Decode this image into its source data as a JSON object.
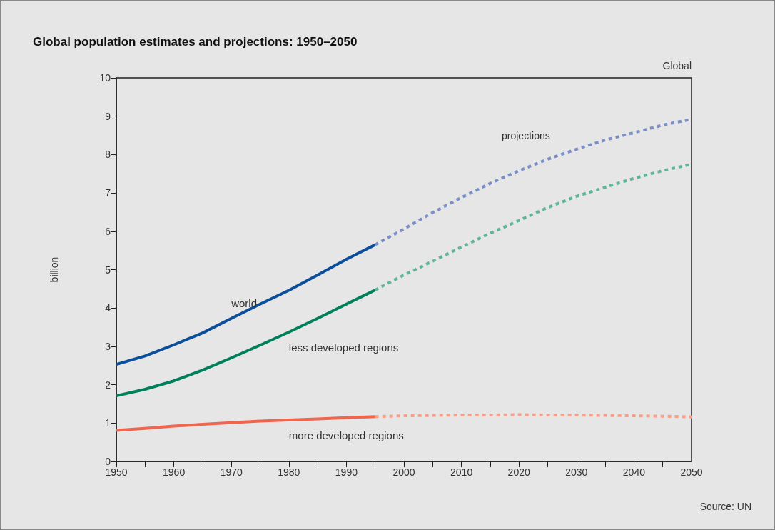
{
  "chart_data": {
    "type": "line",
    "title": "Global population estimates and projections: 1950–2050",
    "ylabel": "billion",
    "annotations": [
      "Global",
      "Source: UN",
      "projections"
    ],
    "xlim": [
      1950,
      2050
    ],
    "ylim": [
      0,
      10
    ],
    "xticks": [
      1950,
      {
        "value": 1955,
        "label": null
      },
      1960,
      {
        "value": 1965,
        "label": null
      },
      1970,
      {
        "value": 1975,
        "label": null
      },
      1980,
      {
        "value": 1985,
        "label": null
      },
      1990,
      {
        "value": 1995,
        "label": null
      },
      2000,
      {
        "value": 2005,
        "label": null
      },
      2010,
      {
        "value": 2015,
        "label": null
      },
      2020,
      {
        "value": 2025,
        "label": null
      },
      2030,
      {
        "value": 2035,
        "label": null
      },
      2040,
      {
        "value": 2045,
        "label": null
      },
      2050
    ],
    "yticks": [
      0,
      1,
      2,
      3,
      4,
      5,
      6,
      7,
      8,
      9,
      10
    ],
    "grid": false,
    "marker": "none",
    "series": [
      {
        "name": "world",
        "color": "#0b4f9c",
        "line_style": "solid",
        "x": [
          1950,
          1955,
          1960,
          1965,
          1970,
          1975,
          1980,
          1985,
          1990,
          1995
        ],
        "values": [
          2.53,
          2.75,
          3.04,
          3.35,
          3.73,
          4.1,
          4.46,
          4.86,
          5.27,
          5.65
        ]
      },
      {
        "color": "#7a8fc8",
        "line_style": "dotted",
        "x": [
          1995,
          2000,
          2005,
          2010,
          2015,
          2020,
          2025,
          2030,
          2035,
          2040,
          2045,
          2050
        ],
        "values": [
          5.65,
          6.06,
          6.49,
          6.88,
          7.25,
          7.58,
          7.88,
          8.14,
          8.38,
          8.57,
          8.77,
          8.92
        ]
      },
      {
        "name": "less developed regions",
        "color": "#00805a",
        "line_style": "solid",
        "x": [
          1950,
          1955,
          1960,
          1965,
          1970,
          1975,
          1980,
          1985,
          1990,
          1995
        ],
        "values": [
          1.71,
          1.88,
          2.1,
          2.38,
          2.7,
          3.03,
          3.37,
          3.73,
          4.1,
          4.47
        ]
      },
      {
        "color": "#5fb49c",
        "line_style": "dotted",
        "x": [
          1995,
          2000,
          2005,
          2010,
          2015,
          2020,
          2025,
          2030,
          2035,
          2040,
          2045,
          2050
        ],
        "values": [
          4.47,
          4.86,
          5.22,
          5.59,
          5.95,
          6.28,
          6.62,
          6.91,
          7.15,
          7.38,
          7.58,
          7.75
        ]
      },
      {
        "name": "more developed regions",
        "color": "#f0654e",
        "line_style": "solid",
        "x": [
          1950,
          1955,
          1960,
          1965,
          1970,
          1975,
          1980,
          1985,
          1990,
          1995
        ],
        "values": [
          0.81,
          0.86,
          0.92,
          0.97,
          1.01,
          1.05,
          1.08,
          1.11,
          1.14,
          1.17
        ]
      },
      {
        "color": "#f5a08a",
        "line_style": "dotted",
        "x": [
          1995,
          2000,
          2005,
          2010,
          2015,
          2020,
          2025,
          2030,
          2035,
          2040,
          2045,
          2050
        ],
        "values": [
          1.17,
          1.19,
          1.2,
          1.21,
          1.21,
          1.22,
          1.21,
          1.21,
          1.2,
          1.19,
          1.18,
          1.16
        ]
      }
    ]
  }
}
